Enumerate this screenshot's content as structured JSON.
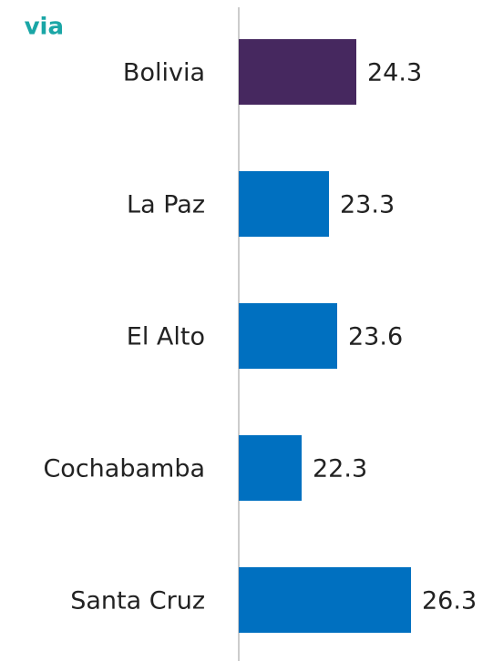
{
  "chart_data": {
    "type": "barh",
    "title": "via",
    "categories": [
      "Bolivia",
      "La Paz",
      "El Alto",
      "Cochabamba",
      "Santa Cruz"
    ],
    "values": [
      24.3,
      23.3,
      23.6,
      22.3,
      26.3
    ],
    "colors": [
      "#46285f",
      "#0070c0",
      "#0070c0",
      "#0070c0",
      "#0070c0"
    ],
    "xlim": [
      20,
      29
    ]
  }
}
